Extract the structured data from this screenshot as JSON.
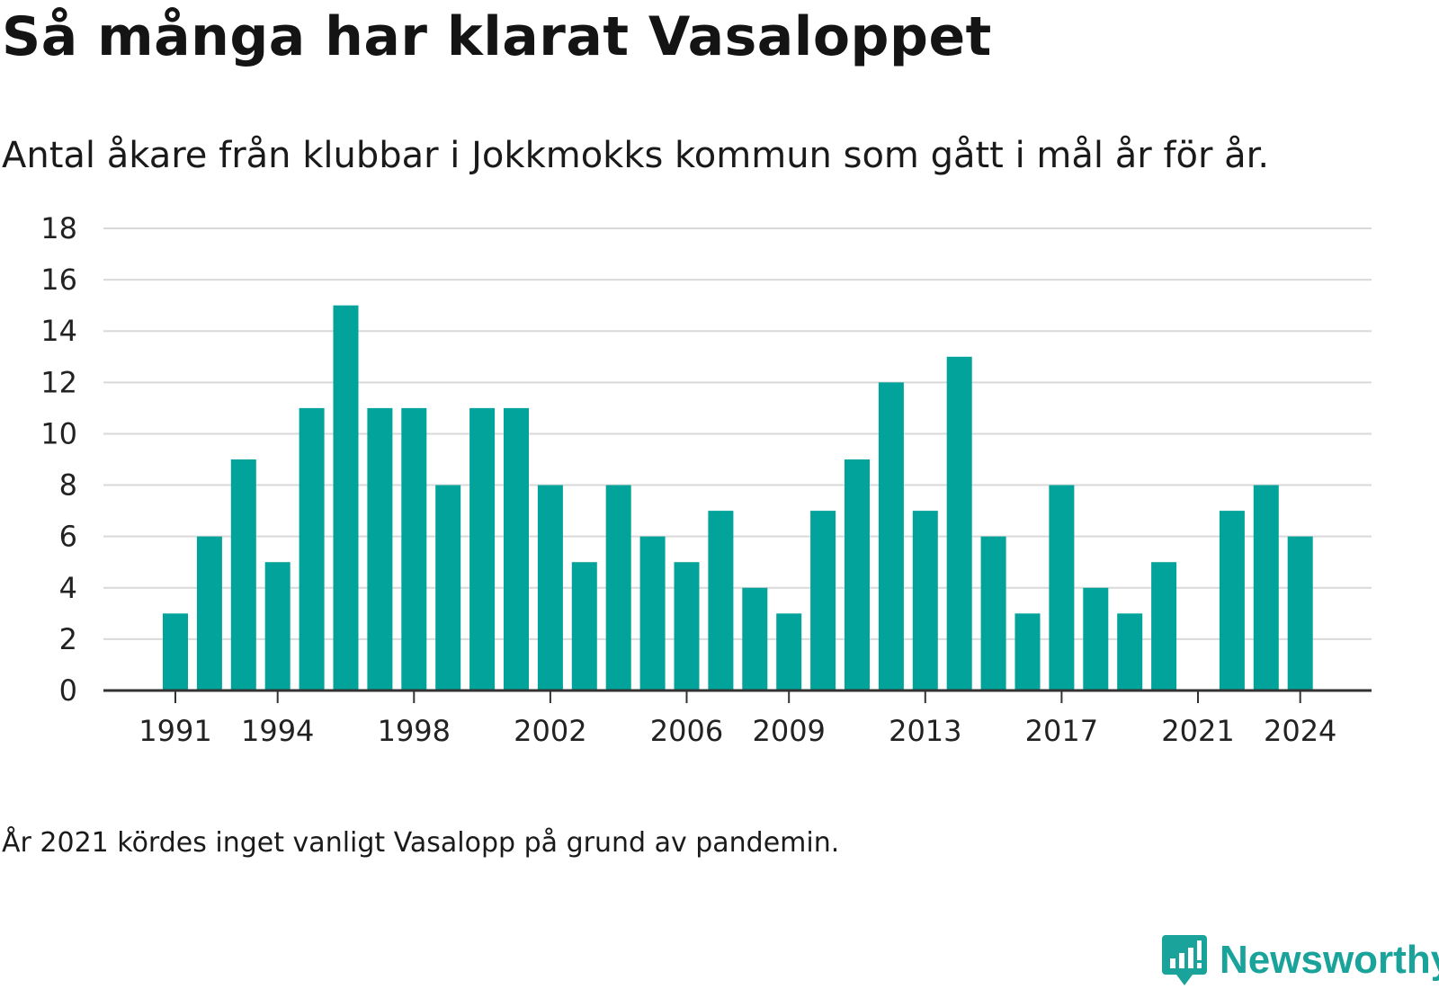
{
  "header": {
    "title": "Så många har klarat Vasaloppet",
    "subtitle": "Antal åkare från klubbar i Jokkmokks kommun som gått i mål år för år."
  },
  "footer": {
    "note": "År 2021 kördes inget vanligt Vasalopp på grund av pandemin.",
    "brand": "Newsworthy",
    "brand_icon": "bar-chart-speech-bubble-icon"
  },
  "colors": {
    "bar": "#02a39a",
    "grid": "#d9d9d9",
    "axis": "#333333",
    "brand": "#1aa39b"
  },
  "chart_data": {
    "type": "bar",
    "title": "Så många har klarat Vasaloppet",
    "subtitle": "Antal åkare från klubbar i Jokkmokks kommun som gått i mål år för år.",
    "xlabel": "",
    "ylabel": "",
    "ylim": [
      0,
      18
    ],
    "yticks": [
      0,
      2,
      4,
      6,
      8,
      10,
      12,
      14,
      16,
      18
    ],
    "grid": true,
    "legend": "none",
    "x_tick_labels": [
      "1991",
      "1994",
      "1998",
      "2002",
      "2006",
      "2009",
      "2013",
      "2017",
      "2021",
      "2024"
    ],
    "categories": [
      "1991",
      "1992",
      "1993",
      "1994",
      "1995",
      "1996",
      "1997",
      "1998",
      "1999",
      "2000",
      "2001",
      "2002",
      "2003",
      "2004",
      "2005",
      "2006",
      "2007",
      "2008",
      "2009",
      "2010",
      "2011",
      "2012",
      "2013",
      "2014",
      "2015",
      "2016",
      "2017",
      "2018",
      "2019",
      "2020",
      "2021",
      "2022",
      "2023",
      "2024"
    ],
    "values": [
      3,
      6,
      9,
      5,
      11,
      15,
      11,
      11,
      8,
      11,
      11,
      8,
      5,
      8,
      6,
      5,
      7,
      4,
      3,
      7,
      9,
      12,
      7,
      13,
      6,
      3,
      8,
      4,
      3,
      5,
      0,
      7,
      8,
      6
    ]
  }
}
